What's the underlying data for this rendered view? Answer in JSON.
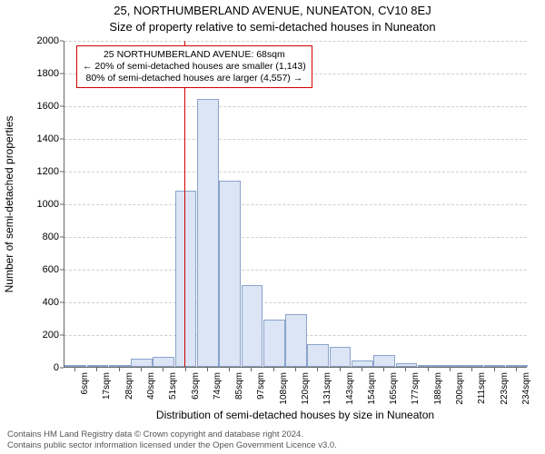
{
  "title_line1": "25, NORTHUMBERLAND AVENUE, NUNEATON, CV10 8EJ",
  "title_line2": "Size of property relative to semi-detached houses in Nuneaton",
  "ylabel": "Number of semi-detached properties",
  "xlabel": "Distribution of semi-detached houses by size in Nuneaton",
  "chart": {
    "type": "histogram",
    "bar_fill": "#dbe5f6",
    "bar_stroke": "#8aa3c9",
    "grid_color": "#cfcfcf",
    "axis_color": "#666666",
    "background_color": "#ffffff",
    "marker_color": "#d00000",
    "annotation_border": "#d00000",
    "font_family": "Arial",
    "title_fontsize": 13,
    "label_fontsize": 12,
    "tick_fontsize": 11,
    "ylim": [
      0,
      2000
    ],
    "yticks": [
      0,
      200,
      400,
      600,
      800,
      1000,
      1200,
      1400,
      1600,
      1800,
      2000
    ],
    "x_tick_labels": [
      "6sqm",
      "17sqm",
      "28sqm",
      "40sqm",
      "51sqm",
      "63sqm",
      "74sqm",
      "85sqm",
      "97sqm",
      "108sqm",
      "120sqm",
      "131sqm",
      "143sqm",
      "154sqm",
      "165sqm",
      "177sqm",
      "188sqm",
      "200sqm",
      "211sqm",
      "223sqm",
      "234sqm"
    ],
    "values": [
      0,
      0,
      0,
      50,
      60,
      1080,
      1640,
      1140,
      500,
      290,
      320,
      140,
      120,
      40,
      70,
      20,
      10,
      5,
      5,
      5,
      5
    ],
    "bar_width_ratio": 0.98,
    "marker_value_sqm": 68,
    "marker_bin_index": 5,
    "marker_fractional_offset_in_bin": 0.45
  },
  "annotation": {
    "line1": "25 NORTHUMBERLAND AVENUE: 68sqm",
    "line2": "← 20% of semi-detached houses are smaller (1,143)",
    "line3": "80% of semi-detached houses are larger (4,557) →"
  },
  "footer": {
    "line1": "Contains HM Land Registry data © Crown copyright and database right 2024.",
    "line2": "Contains public sector information licensed under the Open Government Licence v3.0."
  }
}
